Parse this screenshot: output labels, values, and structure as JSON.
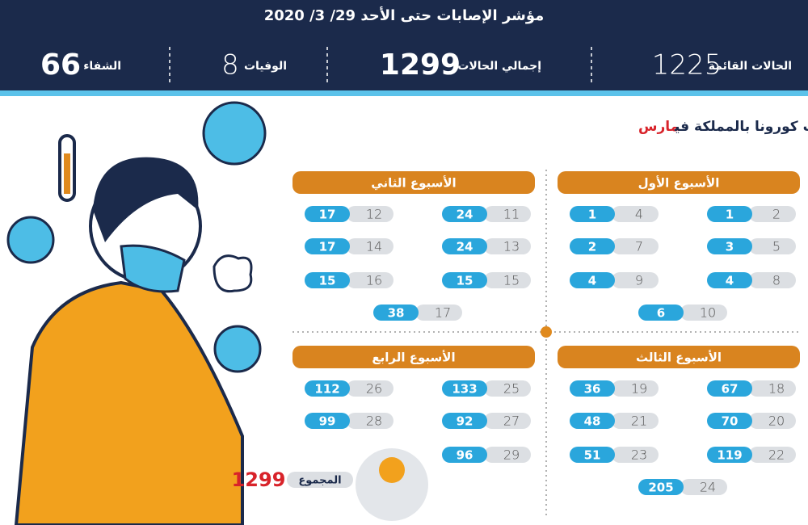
{
  "header": {
    "title": "مؤشر الإصابات حتى الأحد 29/ 3/ 2020",
    "stats": [
      {
        "label": "الحالات القائمة",
        "value": 1225
      },
      {
        "label": "إجمالي الحالات",
        "value": 1299
      },
      {
        "label": "الوفيات",
        "value": 8
      },
      {
        "label": "الشفاء",
        "value": 66
      }
    ]
  },
  "subtitle": {
    "text": "تسلسل ظهور حالات كورونا بالمملكة في",
    "month": "مارس"
  },
  "weeks": [
    {
      "title": "الأسبوع الأول",
      "days": [
        {
          "day": 2,
          "cases": 1
        },
        {
          "day": 4,
          "cases": 1
        },
        {
          "day": 5,
          "cases": 3
        },
        {
          "day": 7,
          "cases": 2
        },
        {
          "day": 8,
          "cases": 4
        },
        {
          "day": 9,
          "cases": 4
        },
        {
          "day": 10,
          "cases": 6
        }
      ]
    },
    {
      "title": "الأسبوع الثاني",
      "days": [
        {
          "day": 11,
          "cases": 24
        },
        {
          "day": 12,
          "cases": 17
        },
        {
          "day": 13,
          "cases": 24
        },
        {
          "day": 14,
          "cases": 17
        },
        {
          "day": 15,
          "cases": 15
        },
        {
          "day": 16,
          "cases": 15
        },
        {
          "day": 17,
          "cases": 38
        }
      ]
    },
    {
      "title": "الأسبوع الثالث",
      "days": [
        {
          "day": 18,
          "cases": 67
        },
        {
          "day": 19,
          "cases": 36
        },
        {
          "day": 20,
          "cases": 70
        },
        {
          "day": 21,
          "cases": 48
        },
        {
          "day": 22,
          "cases": 119
        },
        {
          "day": 23,
          "cases": 51
        },
        {
          "day": 24,
          "cases": 205
        }
      ]
    },
    {
      "title": "الأسبوع الرابع",
      "days": [
        {
          "day": 25,
          "cases": 133
        },
        {
          "day": 26,
          "cases": 112
        },
        {
          "day": 27,
          "cases": 92
        },
        {
          "day": 28,
          "cases": 99
        },
        {
          "day": 29,
          "cases": 96
        }
      ]
    }
  ],
  "total": {
    "label": "المجموع",
    "value": 1299
  }
}
